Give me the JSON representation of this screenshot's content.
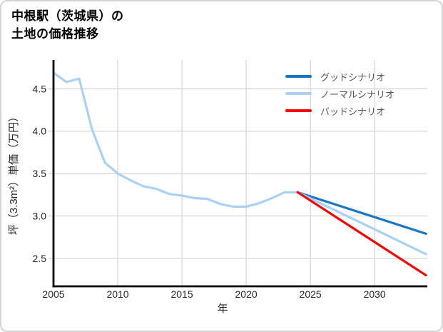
{
  "card": {
    "title_line1": "中根駅（茨城県）の",
    "title_line2": "土地の価格推移"
  },
  "legend": {
    "items": [
      {
        "label": "グッドシナリオ",
        "color": "#1a76c4"
      },
      {
        "label": "ノーマルシナリオ",
        "color": "#a9d1f4"
      },
      {
        "label": "バッドシナリオ",
        "color": "#f50606"
      }
    ]
  },
  "chart_data": {
    "type": "line",
    "title": "中根駅（茨城県）の土地の価格推移",
    "xlabel": "年",
    "ylabel": "坪（3.3m²）単価（万円）",
    "xlim": [
      2005,
      2034.1
    ],
    "ylim": [
      2.17,
      4.84
    ],
    "xticks": [
      2005,
      2010,
      2015,
      2020,
      2025,
      2030
    ],
    "ytick_values": [
      4.5,
      4.0,
      3.5,
      3.0,
      2.5
    ],
    "ytick_labels": [
      "4.5",
      "4.0",
      "3.5",
      "3.0",
      "2.5"
    ],
    "grid": true,
    "legend_position": "top-right",
    "axis_color": "#000000",
    "grid_color": "#d9d9d9",
    "tick_label_color": "#262626",
    "series": [
      {
        "name": "price-history",
        "in_legend": false,
        "color": "#a9d1f4",
        "x": [
          2005,
          2006,
          2007,
          2008,
          2009,
          2010,
          2011,
          2012,
          2013,
          2014,
          2015,
          2016,
          2017,
          2018,
          2019,
          2020,
          2021,
          2022,
          2023,
          2024
        ],
        "y": [
          4.69,
          4.58,
          4.62,
          4.02,
          3.63,
          3.5,
          3.42,
          3.35,
          3.32,
          3.26,
          3.24,
          3.21,
          3.2,
          3.14,
          3.11,
          3.11,
          3.15,
          3.21,
          3.28,
          3.28
        ]
      },
      {
        "name": "グッドシナリオ",
        "in_legend": true,
        "color": "#1a76c4",
        "x": [
          2024,
          2034
        ],
        "y": [
          3.28,
          2.79
        ]
      },
      {
        "name": "ノーマルシナリオ",
        "in_legend": true,
        "color": "#a9d1f4",
        "x": [
          2024,
          2034
        ],
        "y": [
          3.28,
          2.55
        ]
      },
      {
        "name": "バッドシナリオ",
        "in_legend": true,
        "color": "#f50606",
        "x": [
          2024,
          2034
        ],
        "y": [
          3.28,
          2.3
        ]
      }
    ]
  }
}
